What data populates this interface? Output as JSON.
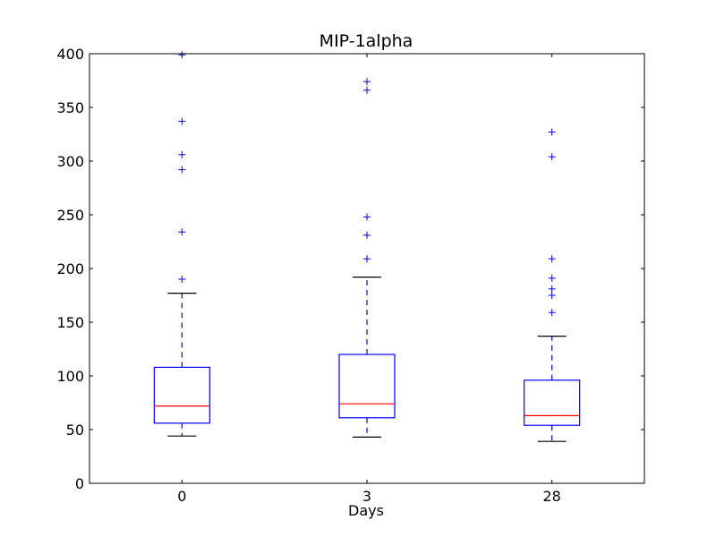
{
  "chart_data": {
    "type": "box",
    "title": "MIP-1alpha",
    "xlabel": "Days",
    "ylabel": "",
    "ylim": [
      0,
      400
    ],
    "yticks": [
      0,
      50,
      100,
      150,
      200,
      250,
      300,
      350,
      400
    ],
    "grid": false,
    "colors": {
      "box": "#0000ff",
      "median": "#ff0000",
      "cap": "#000000",
      "outlier": "#0000ff"
    },
    "boxes": [
      {
        "label": "0",
        "whisker_low": 44,
        "q1": 56,
        "median": 72,
        "q3": 108,
        "whisker_high": 177,
        "outliers": [
          190,
          234,
          292,
          306,
          337,
          399
        ]
      },
      {
        "label": "3",
        "whisker_low": 43,
        "q1": 61,
        "median": 74,
        "q3": 120,
        "whisker_high": 192,
        "outliers": [
          209,
          231,
          248,
          366,
          374
        ]
      },
      {
        "label": "28",
        "whisker_low": 39,
        "q1": 54,
        "median": 63,
        "q3": 96,
        "whisker_high": 137,
        "outliers": [
          159,
          175,
          181,
          191,
          209,
          304,
          327
        ]
      }
    ]
  }
}
